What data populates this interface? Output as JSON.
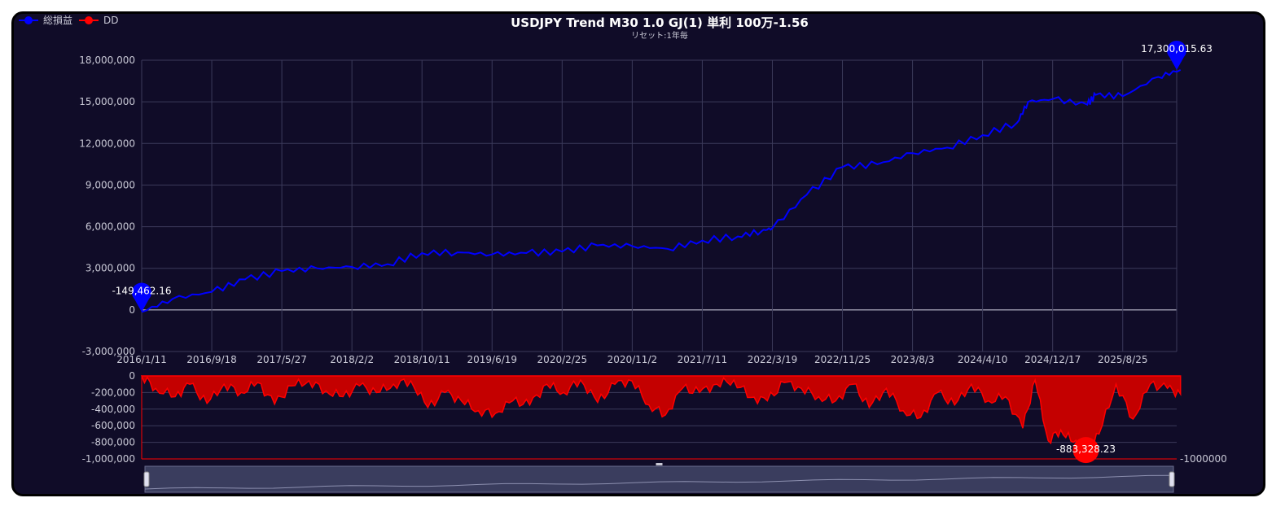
{
  "chart_data": [
    {
      "type": "line",
      "title": "USDJPY Trend M30 1.0 GJ(1) 単利 100万-1.56",
      "subtitle": "リセット:1年毎",
      "legend": [
        {
          "name": "総損益",
          "color": "#0000ff"
        },
        {
          "name": "DD",
          "color": "#ff0000"
        }
      ],
      "legend_position": "top-left",
      "grid": true,
      "x_tick_labels": [
        "2016/1/11",
        "2016/9/18",
        "2017/5/27",
        "2018/2/2",
        "2018/10/11",
        "2019/6/19",
        "2020/2/25",
        "2020/11/2",
        "2021/7/11",
        "2022/3/19",
        "2022/11/25",
        "2023/8/3",
        "2024/4/10",
        "2024/12/17",
        "2025/8/25"
      ],
      "y_tick_labels": [
        "18,000,000",
        "15,000,000",
        "12,000,000",
        "9,000,000",
        "6,000,000",
        "3,000,000",
        "0",
        "-3,000,000"
      ],
      "ylim": [
        -3000000,
        18000000
      ],
      "series": [
        {
          "name": "総損益",
          "color": "#0000ff",
          "x": [
            "2016/1/11",
            "2016/5/1",
            "2016/9/18",
            "2017/1/15",
            "2017/5/27",
            "2017/9/30",
            "2018/2/2",
            "2018/6/10",
            "2018/10/11",
            "2019/2/15",
            "2019/6/19",
            "2019/10/20",
            "2020/2/25",
            "2020/6/30",
            "2020/11/2",
            "2021/3/8",
            "2021/7/11",
            "2021/11/15",
            "2022/2/10",
            "2022/3/19",
            "2022/7/20",
            "2022/11/25",
            "2023/3/30",
            "2023/8/3",
            "2023/12/5",
            "2024/4/10",
            "2024/8/12",
            "2024/9/20",
            "2024/12/17",
            "2025/4/20",
            "2025/5/20",
            "2025/8/25",
            "2025/12/30",
            "2026/3/20"
          ],
          "values": [
            -149462.16,
            800000,
            1300000,
            2200000,
            2800000,
            3000000,
            3100000,
            3300000,
            4100000,
            4150000,
            4000000,
            4100000,
            4200000,
            4650000,
            4600000,
            4400000,
            5000000,
            5300000,
            5700000,
            5900000,
            8300000,
            10300000,
            10500000,
            11300000,
            11700000,
            12600000,
            13500000,
            15000000,
            15200000,
            14800000,
            15500000,
            15400000,
            16800000,
            17300015.63
          ]
        }
      ],
      "markers": [
        {
          "label": "-149,462.16",
          "x": "2016/1/11",
          "y": -149462.16
        },
        {
          "label": "17,300,015.63",
          "x": "2026/3/20",
          "y": 17300015.63
        }
      ]
    },
    {
      "type": "area",
      "y_tick_labels": [
        "0",
        "-200,000",
        "-400,000",
        "-600,000",
        "-800,000",
        "-1,000,000"
      ],
      "ylim": [
        -1000000,
        0
      ],
      "reference_line": {
        "label": "-1000000",
        "value": -1000000
      },
      "series": [
        {
          "name": "DD",
          "color": "#ff0000",
          "x": [
            "2016/1/11",
            "2016/3/1",
            "2016/5/10",
            "2016/7/1",
            "2016/9/1",
            "2016/11/1",
            "2017/1/1",
            "2017/3/1",
            "2017/5/1",
            "2017/7/1",
            "2017/9/1",
            "2017/11/1",
            "2018/1/1",
            "2018/3/1",
            "2018/5/1",
            "2018/7/1",
            "2018/9/1",
            "2018/11/1",
            "2019/1/1",
            "2019/3/1",
            "2019/5/1",
            "2019/7/1",
            "2019/9/1",
            "2019/11/1",
            "2020/1/1",
            "2020/3/1",
            "2020/5/1",
            "2020/7/1",
            "2020/9/1",
            "2020/11/1",
            "2021/1/1",
            "2021/3/1",
            "2021/5/1",
            "2021/7/1",
            "2021/9/1",
            "2021/11/1",
            "2022/1/1",
            "2022/3/1",
            "2022/5/1",
            "2022/7/1",
            "2022/9/1",
            "2022/11/1",
            "2023/1/1",
            "2023/3/1",
            "2023/5/1",
            "2023/7/1",
            "2023/9/1",
            "2023/11/1",
            "2024/1/1",
            "2024/3/1",
            "2024/5/1",
            "2024/7/1",
            "2024/9/1",
            "2024/10/15",
            "2024/12/1",
            "2025/1/15",
            "2025/3/1",
            "2025/4/15",
            "2025/6/1",
            "2025/8/1",
            "2025/10/1",
            "2025/12/1",
            "2026/2/1",
            "2026/3/20"
          ],
          "values": [
            0,
            -150000,
            -250000,
            -100000,
            -330000,
            -100000,
            -200000,
            -80000,
            -340000,
            -120000,
            -60000,
            -180000,
            -250000,
            -120000,
            -200000,
            -100000,
            -60000,
            -380000,
            -200000,
            -300000,
            -420000,
            -450000,
            -300000,
            -350000,
            -100000,
            -200000,
            -50000,
            -320000,
            -100000,
            -60000,
            -350000,
            -470000,
            -150000,
            -200000,
            -100000,
            -50000,
            -260000,
            -300000,
            -80000,
            -150000,
            -250000,
            -300000,
            -100000,
            -380000,
            -150000,
            -420000,
            -500000,
            -200000,
            -350000,
            -100000,
            -300000,
            -250000,
            -630000,
            -50000,
            -780000,
            -650000,
            -800000,
            -883328.23,
            -700000,
            -100000,
            -520000,
            -100000,
            -150000,
            -220000
          ]
        }
      ],
      "markers": [
        {
          "label": "-883,328.23",
          "x": "2025/4/15",
          "y": -883328.23
        }
      ]
    }
  ]
}
